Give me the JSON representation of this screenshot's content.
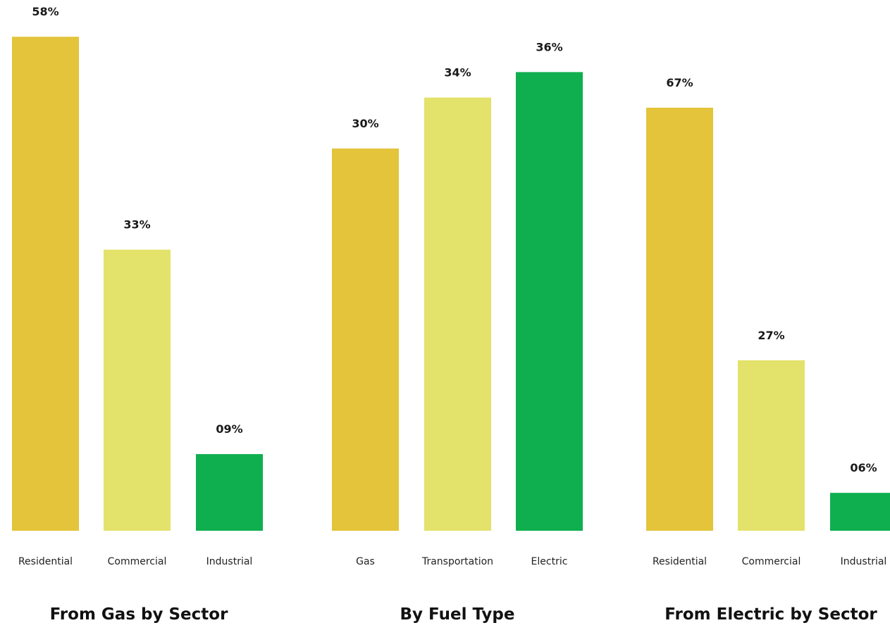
{
  "chart_data": [
    {
      "type": "bar",
      "title": "From Gas by Sector",
      "categories": [
        "Residential",
        "Commercial",
        "Industrial"
      ],
      "values": [
        58,
        33,
        9
      ],
      "value_labels": [
        "58%",
        "33%",
        "09%"
      ],
      "colors": [
        "#E3C43A",
        "#E3E26A",
        "#0FAF4F"
      ],
      "grid": false,
      "legend": "none"
    },
    {
      "type": "bar",
      "title": "By Fuel Type",
      "categories": [
        "Gas",
        "Transportation",
        "Electric"
      ],
      "values": [
        30,
        34,
        36
      ],
      "value_labels": [
        "30%",
        "34%",
        "36%"
      ],
      "colors": [
        "#E3C43A",
        "#E3E26A",
        "#0FAF4F"
      ],
      "grid": false,
      "legend": "none"
    },
    {
      "type": "bar",
      "title": "From Electric by Sector",
      "categories": [
        "Residential",
        "Commercial",
        "Industrial"
      ],
      "values": [
        67,
        27,
        6
      ],
      "value_labels": [
        "67%",
        "27%",
        "06%"
      ],
      "colors": [
        "#E3C43A",
        "#E3E26A",
        "#0FAF4F"
      ],
      "grid": false,
      "legend": "none"
    }
  ]
}
